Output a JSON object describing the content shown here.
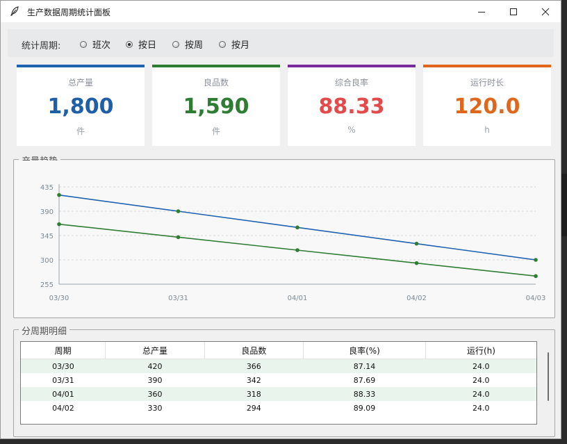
{
  "window": {
    "title": "生产数据周期统计面板"
  },
  "period": {
    "label": "统计周期:",
    "options": [
      {
        "label": "班次",
        "selected": false
      },
      {
        "label": "按日",
        "selected": true
      },
      {
        "label": "按周",
        "selected": false
      },
      {
        "label": "按月",
        "selected": false
      }
    ]
  },
  "cards": [
    {
      "label": "总产量",
      "value": "1,800",
      "unit": "件",
      "color": "#1f5fa8"
    },
    {
      "label": "良品数",
      "value": "1,590",
      "unit": "件",
      "color": "#2e7d32"
    },
    {
      "label": "综合良率",
      "value": "88.33",
      "unit": "%",
      "color": "#e34b4b"
    },
    {
      "label": "运行时长",
      "value": "120.0",
      "unit": "h",
      "color": "#e0661c"
    }
  ],
  "card_bar_colors": [
    "#1e62b0",
    "#2e7d32",
    "#7b2aa0",
    "#e0661c"
  ],
  "trend": {
    "title": "产量趋势"
  },
  "chart_data": {
    "type": "line",
    "x": [
      "03/30",
      "03/31",
      "04/01",
      "04/02",
      "04/03"
    ],
    "y_ticks": [
      255,
      300,
      345,
      390,
      435
    ],
    "ylim": [
      255,
      435
    ],
    "grid": true,
    "series": [
      {
        "values": [
          420,
          390,
          360,
          330,
          300
        ],
        "color": "#1e62b0"
      },
      {
        "values": [
          366,
          342,
          318,
          294,
          270
        ],
        "color": "#2e7d32"
      }
    ]
  },
  "detail": {
    "title": "分周期明细",
    "columns": [
      "周期",
      "总产量",
      "良品数",
      "良率(%)",
      "运行(h)"
    ],
    "rows": [
      [
        "03/30",
        "420",
        "366",
        "87.14",
        "24.0"
      ],
      [
        "03/31",
        "390",
        "342",
        "87.69",
        "24.0"
      ],
      [
        "04/01",
        "360",
        "318",
        "88.33",
        "24.0"
      ],
      [
        "04/02",
        "330",
        "294",
        "89.09",
        "24.0"
      ]
    ]
  }
}
